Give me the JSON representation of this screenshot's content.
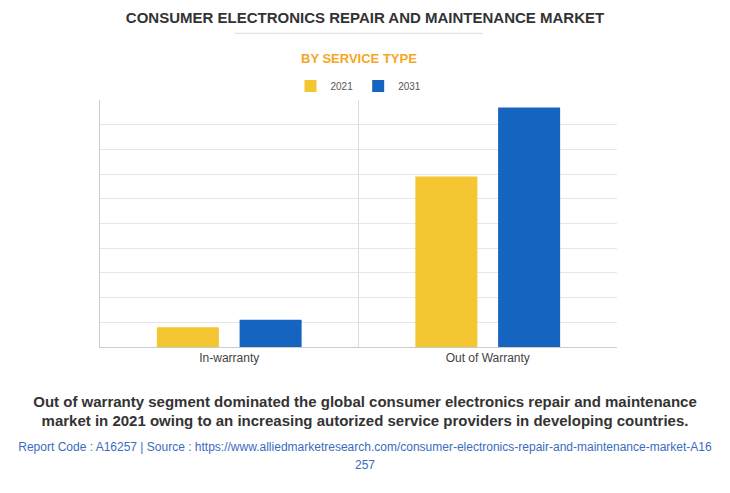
{
  "chart_data": {
    "type": "bar",
    "title": "CONSUMER ELECTRONICS REPAIR AND MAINTENANCE MARKET",
    "subtitle": "BY SERVICE TYPE",
    "categories": [
      "In-warranty",
      "Out of Warranty"
    ],
    "series": [
      {
        "name": "2021",
        "color": "#f4c631",
        "values": [
          0.8,
          6.9
        ]
      },
      {
        "name": "2031",
        "color": "#1565c0",
        "values": [
          1.1,
          9.7
        ]
      }
    ],
    "ylim": [
      0,
      10
    ],
    "yticks": [
      0,
      1,
      2,
      3,
      4,
      5,
      6,
      7,
      8,
      9,
      10
    ],
    "grid": true,
    "tick_labels": "x",
    "legend": "top",
    "caption": "Out of warranty segment dominated the global consumer electronics repair and maintenance market in 2021 owing to an increasing autorized service providers in developing countries.",
    "source": "Report Code : A16257  |  Source : https://www.alliedmarketresearch.com/consumer-electronics-repair-and-maintenance-market-A16257"
  }
}
